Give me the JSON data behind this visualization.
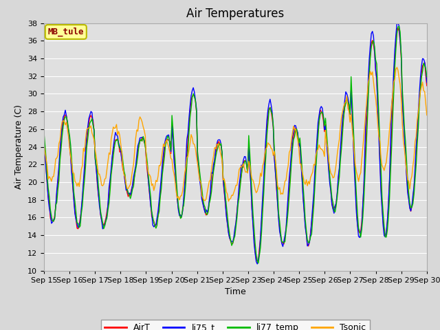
{
  "title": "Air Temperatures",
  "ylabel": "Air Temperature (C)",
  "xlabel": "Time",
  "annotation": "MB_tule",
  "ylim": [
    10,
    38
  ],
  "yticks": [
    10,
    12,
    14,
    16,
    18,
    20,
    22,
    24,
    26,
    28,
    30,
    32,
    34,
    36,
    38
  ],
  "xtick_labels": [
    "Sep 15",
    "Sep 16",
    "Sep 17",
    "Sep 18",
    "Sep 19",
    "Sep 20",
    "Sep 21",
    "Sep 22",
    "Sep 23",
    "Sep 24",
    "Sep 25",
    "Sep 26",
    "Sep 27",
    "Sep 28",
    "Sep 29",
    "Sep 30"
  ],
  "series_colors": {
    "AirT": "#ff0000",
    "li75_t": "#0000ff",
    "li77_temp": "#00bb00",
    "Tsonic": "#ffa500"
  },
  "background_color": "#e0e0e0",
  "grid_color": "#ffffff",
  "fig_bg": "#d8d8d8",
  "title_fontsize": 12,
  "axis_fontsize": 9,
  "tick_fontsize": 8,
  "legend_fontsize": 9,
  "annotation_fontsize": 9
}
